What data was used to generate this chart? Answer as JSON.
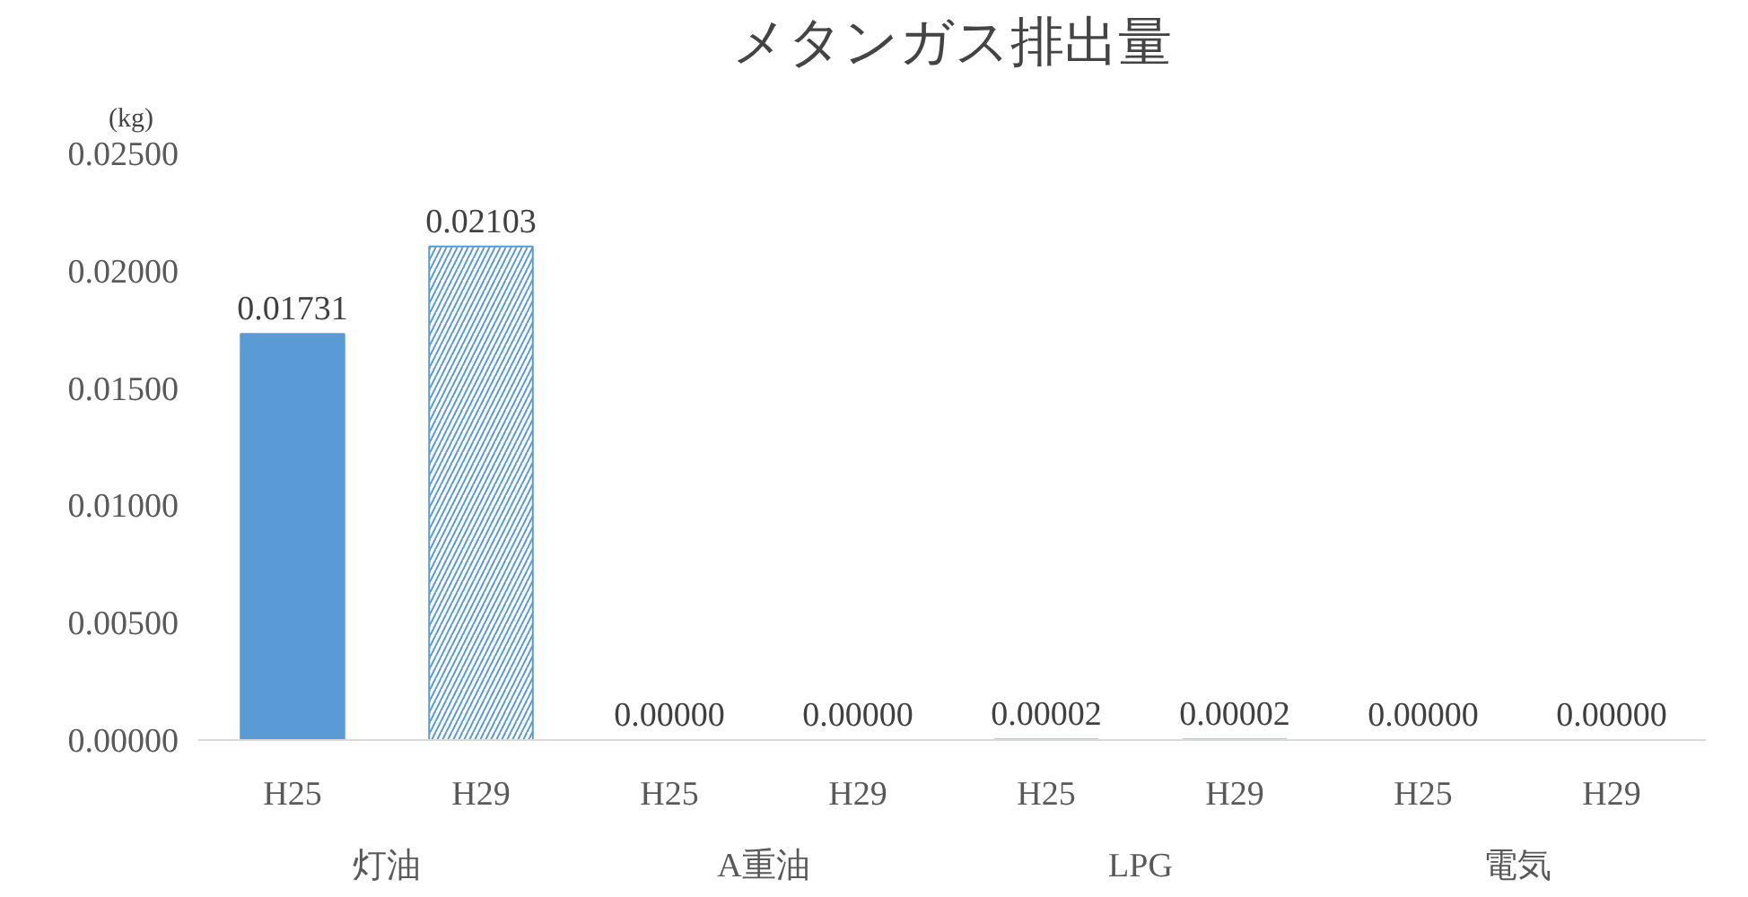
{
  "chart_data": {
    "type": "bar",
    "title": "メタンガス排出量",
    "ylabel": "(kg)",
    "categories": [
      "灯油",
      "A重油",
      "LPG",
      "電気"
    ],
    "series": [
      {
        "name": "H25",
        "color": "#5b9bd5",
        "values": [
          0.01731,
          0,
          2e-05,
          0
        ],
        "value_labels": [
          "0.01731",
          "0.00000",
          "0.00002",
          "0.00000"
        ]
      },
      {
        "name": "H29",
        "color": "#5b9bd5",
        "values": [
          0.02103,
          0,
          2e-05,
          0
        ],
        "value_labels": [
          "0.02103",
          "0.00000",
          "0.00002",
          "0.00000"
        ]
      }
    ],
    "ylim": [
      0,
      0.025
    ],
    "yticks": [
      {
        "value": 0,
        "label": "0.00000"
      },
      {
        "value": 0.005,
        "label": "0.00500"
      },
      {
        "value": 0.01,
        "label": "0.01000"
      },
      {
        "value": 0.015,
        "label": "0.01500"
      },
      {
        "value": 0.02,
        "label": "0.02000"
      },
      {
        "value": 0.025,
        "label": "0.02500"
      }
    ],
    "grid": false
  }
}
